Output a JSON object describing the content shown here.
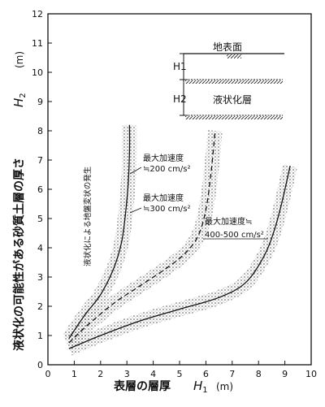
{
  "chart_data": {
    "type": "line",
    "xlabel": {
      "main": "表層の層厚",
      "sym": "H",
      "sub": "1",
      "unit": "(m)"
    },
    "ylabel": {
      "main": "液状化の可能性がある砂質土層の厚さ",
      "sym": "H",
      "sub": "2",
      "unit": "(m)"
    },
    "xlim": [
      0,
      10
    ],
    "ylim": [
      0,
      12
    ],
    "x_ticks": [
      "0",
      "1",
      "2",
      "3",
      "4",
      "5",
      "6",
      "7",
      "8",
      "9",
      "10"
    ],
    "y_ticks": [
      "0",
      "1",
      "2",
      "3",
      "4",
      "5",
      "6",
      "7",
      "8",
      "9",
      "10",
      "11",
      "12"
    ],
    "grid": false,
    "region_label": "液状化による地盤変状の発生",
    "series": [
      {
        "name": "最大加速度≒200 cm/s²",
        "label_line1": "最大加速度",
        "label_line2": "≒200 cm/s²",
        "style": "solid",
        "x": [
          0.8,
          1.4,
          2.0,
          2.5,
          2.8,
          2.95,
          3.05,
          3.1,
          3.1
        ],
        "y": [
          0.9,
          1.7,
          2.4,
          3.3,
          4.2,
          5.2,
          6.2,
          7.3,
          8.2
        ]
      },
      {
        "name": "最大加速度≒300 cm/s²",
        "label_line1": "最大加速度",
        "label_line2": "≒300 cm/s²",
        "style": "dashed",
        "x": [
          0.8,
          1.5,
          2.5,
          3.5,
          4.5,
          5.2,
          5.7,
          6.0,
          6.2,
          6.35
        ],
        "y": [
          0.75,
          1.35,
          2.1,
          2.7,
          3.3,
          3.8,
          4.4,
          5.3,
          6.6,
          8.0
        ]
      },
      {
        "name": "最大加速度≒400-500 cm/s²",
        "label_line1": "最大加速度≒",
        "label_line2": "400-500 cm/s²",
        "style": "solid",
        "x": [
          0.8,
          2.0,
          3.5,
          5.0,
          6.5,
          7.5,
          8.2,
          8.6,
          8.9,
          9.2
        ],
        "y": [
          0.55,
          1.0,
          1.5,
          1.9,
          2.3,
          2.8,
          3.7,
          4.6,
          5.6,
          6.8
        ]
      }
    ],
    "inset": {
      "surface_label": "地表面",
      "layer1_label": "H1",
      "layer2_label": "H2",
      "liquefied_label": "液状化層"
    }
  }
}
